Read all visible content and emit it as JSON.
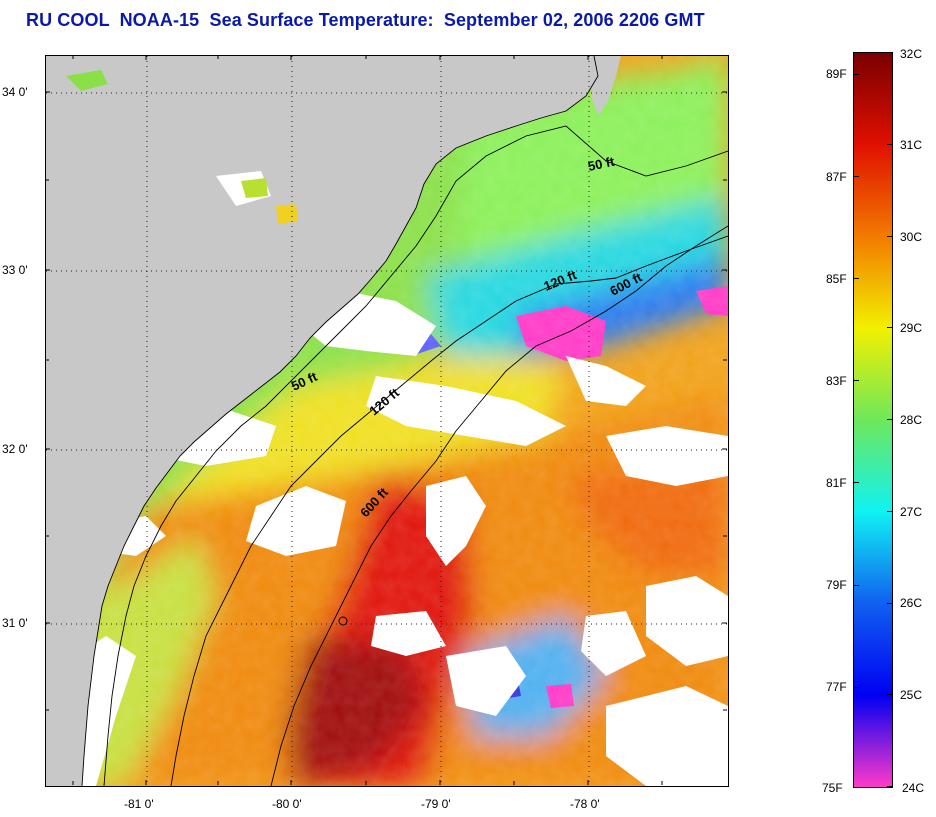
{
  "title": "RU COOL  NOAA-15  Sea Surface Temperature:  September 02, 2006 2206 GMT",
  "map": {
    "lat_labels": [
      "34 0'",
      "33 0'",
      "32 0'",
      "31 0'"
    ],
    "lon_labels": [
      "-81 0'",
      "-80 0'",
      "-79 0'",
      "-78 0'"
    ],
    "isobath_labels": [
      "50 ft",
      "120 ft",
      "600 ft",
      "50 ft",
      "120 ft",
      "600 ft"
    ]
  },
  "colorbar": {
    "celsius_labels": [
      "32C",
      "31C",
      "30C",
      "29C",
      "28C",
      "27C",
      "26C",
      "25C",
      "24C"
    ],
    "fahrenheit_labels": [
      "89F",
      "87F",
      "85F",
      "83F",
      "81F",
      "79F",
      "77F",
      "75F"
    ],
    "colors": {
      "c32": "#7a0000",
      "c31": "#e01000",
      "c30": "#f27a00",
      "c29": "#f2f000",
      "c28": "#6ee85a",
      "c27": "#10f2f2",
      "c26": "#1060f0",
      "c25": "#0000f2",
      "c24": "#ff3ac8"
    }
  },
  "colors": {
    "land": "#c8c8c8",
    "cloud": "#ffffff",
    "title": "#0a1aa8"
  }
}
